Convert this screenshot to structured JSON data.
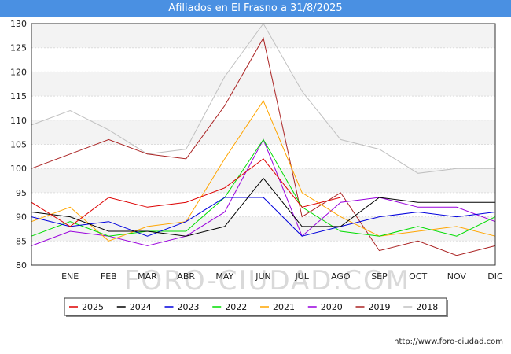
{
  "title": "Afiliados en El Frasno a 31/8/2025",
  "url": "http://www.foro-ciudad.com",
  "watermark": "FORO-CIUDAD.COM",
  "chart_data": {
    "type": "line",
    "title": "Afiliados en El Frasno a 31/8/2025",
    "categories": [
      "",
      "ENE",
      "FEB",
      "MAR",
      "ABR",
      "MAY",
      "JUN",
      "JUL",
      "AGO",
      "SEP",
      "OCT",
      "NOV",
      "DIC"
    ],
    "ylim": [
      80,
      130
    ],
    "yticks": [
      80,
      85,
      90,
      95,
      100,
      105,
      110,
      115,
      120,
      125,
      130
    ],
    "grid": true,
    "legend_position": "bottom",
    "series": [
      {
        "name": "2025",
        "color": "#dd0000",
        "values": [
          93,
          88,
          94,
          92,
          93,
          96,
          102,
          92,
          94,
          null,
          null,
          null,
          null
        ]
      },
      {
        "name": "2024",
        "color": "#000000",
        "values": [
          91,
          90,
          87,
          87,
          86,
          88,
          98,
          88,
          88,
          94,
          93,
          93,
          93
        ]
      },
      {
        "name": "2023",
        "color": "#0000dd",
        "values": [
          90,
          88,
          89,
          86,
          89,
          94,
          94,
          86,
          88,
          90,
          91,
          90,
          91
        ]
      },
      {
        "name": "2022",
        "color": "#00dd00",
        "values": [
          86,
          89,
          86,
          87,
          87,
          94,
          106,
          92,
          87,
          86,
          88,
          86,
          90
        ]
      },
      {
        "name": "2021",
        "color": "#ffa500",
        "values": [
          89,
          92,
          85,
          88,
          89,
          102,
          114,
          95,
          90,
          86,
          87,
          88,
          86
        ]
      },
      {
        "name": "2020",
        "color": "#9900dd",
        "values": [
          84,
          87,
          86,
          84,
          86,
          91,
          106,
          86,
          93,
          94,
          92,
          92,
          89
        ]
      },
      {
        "name": "2019",
        "color": "#aa2222",
        "values": [
          100,
          103,
          106,
          103,
          102,
          113,
          127,
          90,
          95,
          83,
          85,
          82,
          84
        ]
      },
      {
        "name": "2018",
        "color": "#c0c0c0",
        "values": [
          109,
          112,
          108,
          103,
          104,
          119,
          130,
          116,
          106,
          104,
          99,
          100,
          100
        ]
      }
    ]
  }
}
